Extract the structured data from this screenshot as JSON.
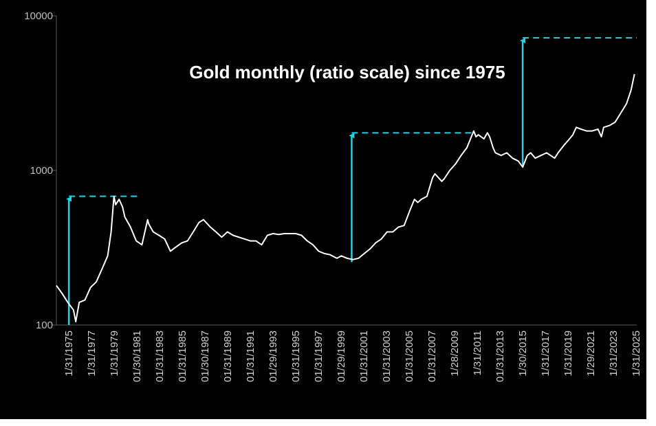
{
  "chart_data": {
    "type": "line",
    "title": "Gold monthly (ratio scale) since 1975",
    "xlabel": "",
    "ylabel": "",
    "y_scale": "log",
    "ylim": [
      100,
      10000
    ],
    "y_ticks": [
      "10000",
      "1000",
      "100"
    ],
    "x_tick_labels": [
      "1/31/1975",
      "1/31/1977",
      "1/31/1979",
      "01/30/1981",
      "01/31/1983",
      "01/31/1985",
      "01/30/1987",
      "01/31/1989",
      "01/31/1991",
      "01/29/1993",
      "01/31/1995",
      "01/31/1997",
      "01/29/1999",
      "01/31/2001",
      "01/31/2003",
      "01/31/2005",
      "01/31/2007",
      "1/28/2009",
      "1/31/2011",
      "01/31/2013",
      "1/30/2015",
      "1/31/2017",
      "1/31/2019",
      "1/29/2021",
      "1/31/2023",
      "1/31/2025"
    ],
    "grid": false,
    "colors": {
      "background": "#000000",
      "line": "#ffffff",
      "annotation": "#22d3e6",
      "axis": "#5a5a5a"
    },
    "series": [
      {
        "x": [
          1975.0,
          1975.5,
          1976.0,
          1976.5,
          1976.7,
          1977.0,
          1977.5,
          1978.0,
          1978.5,
          1979.0,
          1979.5,
          1979.8,
          1980.05,
          1980.2,
          1980.5,
          1980.8,
          1981.0,
          1981.5,
          1982.0,
          1982.5,
          1983.0,
          1983.1,
          1983.5,
          1984.0,
          1984.5,
          1985.0,
          1985.5,
          1986.0,
          1986.5,
          1987.0,
          1987.5,
          1987.9,
          1988.5,
          1989.0,
          1989.5,
          1990.0,
          1990.5,
          1991.0,
          1991.5,
          1992.0,
          1992.5,
          1993.0,
          1993.5,
          1994.0,
          1994.5,
          1995.0,
          1995.5,
          1996.0,
          1996.5,
          1997.0,
          1997.5,
          1998.0,
          1998.5,
          1999.0,
          1999.6,
          2000.0,
          2000.5,
          2001.0,
          2001.5,
          2002.0,
          2002.5,
          2003.0,
          2003.5,
          2004.0,
          2004.5,
          2005.0,
          2005.5,
          2006.0,
          2006.4,
          2006.7,
          2007.0,
          2007.5,
          2008.0,
          2008.2,
          2008.8,
          2009.0,
          2009.5,
          2010.0,
          2010.5,
          2011.0,
          2011.6,
          2011.8,
          2012.0,
          2012.5,
          2012.8,
          2013.0,
          2013.3,
          2013.5,
          2014.0,
          2014.5,
          2015.0,
          2015.5,
          2015.9,
          2016.3,
          2016.6,
          2017.0,
          2017.5,
          2018.0,
          2018.7,
          2019.0,
          2019.5,
          2020.0,
          2020.3,
          2020.6,
          2021.0,
          2021.5,
          2022.0,
          2022.5,
          2022.8,
          2023.0,
          2023.5,
          2024.0,
          2024.5,
          2025.0,
          2025.4,
          2025.7
        ],
        "y": [
          180,
          160,
          140,
          125,
          105,
          140,
          145,
          175,
          190,
          230,
          280,
          400,
          680,
          600,
          650,
          580,
          500,
          430,
          350,
          330,
          480,
          450,
          400,
          380,
          360,
          300,
          320,
          340,
          350,
          400,
          460,
          480,
          430,
          400,
          370,
          400,
          380,
          370,
          360,
          350,
          350,
          330,
          380,
          390,
          385,
          390,
          390,
          390,
          380,
          350,
          330,
          300,
          290,
          285,
          270,
          280,
          270,
          265,
          270,
          290,
          310,
          340,
          360,
          400,
          400,
          430,
          440,
          550,
          650,
          620,
          650,
          680,
          900,
          950,
          850,
          880,
          1000,
          1100,
          1250,
          1400,
          1800,
          1650,
          1700,
          1600,
          1750,
          1650,
          1400,
          1300,
          1250,
          1300,
          1200,
          1150,
          1050,
          1250,
          1300,
          1200,
          1250,
          1300,
          1200,
          1300,
          1450,
          1600,
          1700,
          1900,
          1850,
          1800,
          1800,
          1850,
          1650,
          1900,
          1950,
          2050,
          2350,
          2700,
          3300,
          4200
        ]
      }
    ],
    "annotations": [
      {
        "arrow_from": [
          1976.1,
          100
        ],
        "arrow_to": [
          1976.1,
          680
        ],
        "dashed_to_x": 1982.4
      },
      {
        "arrow_from": [
          2000.9,
          255
        ],
        "arrow_to": [
          2000.9,
          1750
        ],
        "dashed_to_x": 2011.6
      },
      {
        "arrow_from": [
          2015.9,
          1050
        ],
        "arrow_to": [
          2015.9,
          7200
        ],
        "dashed_to_x": 2025.9
      }
    ]
  }
}
